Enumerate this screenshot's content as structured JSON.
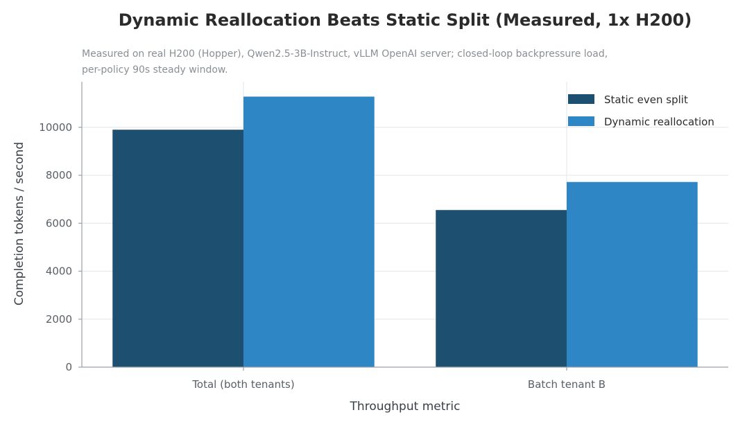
{
  "chart_data": {
    "type": "bar",
    "title": "Dynamic Reallocation Beats Static Split (Measured, 1x H200)",
    "subtitle_lines": [
      "Measured on real H200 (Hopper), Qwen2.5-3B-Instruct, vLLM OpenAI server; closed-loop backpressure load,",
      "per-policy 90s steady window."
    ],
    "xlabel": "Throughput metric",
    "ylabel": "Completion tokens / second",
    "categories": [
      "Total (both tenants)",
      "Batch tenant B"
    ],
    "series": [
      {
        "name": "Static even split",
        "color": "#1c4f70",
        "values": [
          9900,
          6550
        ]
      },
      {
        "name": "Dynamic reallocation",
        "color": "#2e86c4",
        "values": [
          11280,
          7720
        ]
      }
    ],
    "ylim": [
      0,
      11900
    ],
    "yticks": [
      0,
      2000,
      4000,
      6000,
      8000,
      10000
    ],
    "grid": true,
    "legend_position": "top-right"
  }
}
